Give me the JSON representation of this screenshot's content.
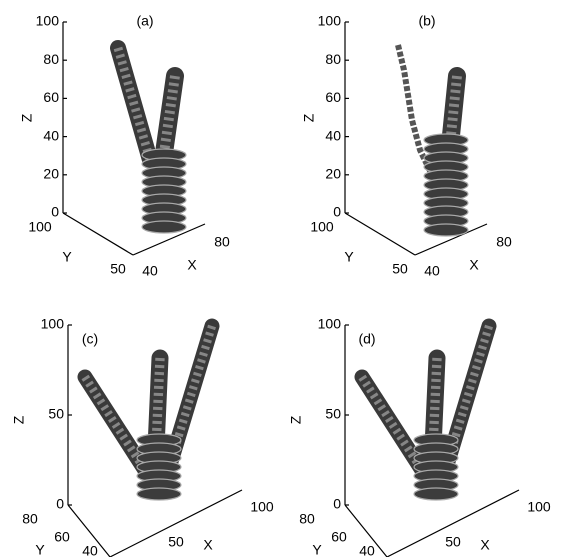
{
  "panels": [
    {
      "label": "(a)",
      "z_label": "Z",
      "y_label": "Y",
      "x_label": "X",
      "z_ticks": [
        "0",
        "20",
        "40",
        "60",
        "80",
        "100"
      ],
      "y_ticks": [
        "100",
        "50"
      ],
      "x_ticks": [
        "40",
        "80"
      ]
    },
    {
      "label": "(b)",
      "z_label": "Z",
      "y_label": "Y",
      "x_label": "X",
      "z_ticks": [
        "0",
        "20",
        "40",
        "60",
        "80",
        "100"
      ],
      "y_ticks": [
        "100",
        "50"
      ],
      "x_ticks": [
        "40",
        "80"
      ]
    },
    {
      "label": "(c)",
      "z_label": "Z",
      "y_label": "Y",
      "x_label": "X",
      "z_ticks": [
        "0",
        "50",
        "100"
      ],
      "y_ticks": [
        "80",
        "60",
        "40"
      ],
      "x_ticks": [
        "50",
        "100"
      ]
    },
    {
      "label": "(d)",
      "z_label": "Z",
      "y_label": "Y",
      "x_label": "X",
      "z_ticks": [
        "0",
        "50",
        "100"
      ],
      "y_ticks": [
        "80",
        "60",
        "40"
      ],
      "x_ticks": [
        "50",
        "100"
      ]
    }
  ]
}
